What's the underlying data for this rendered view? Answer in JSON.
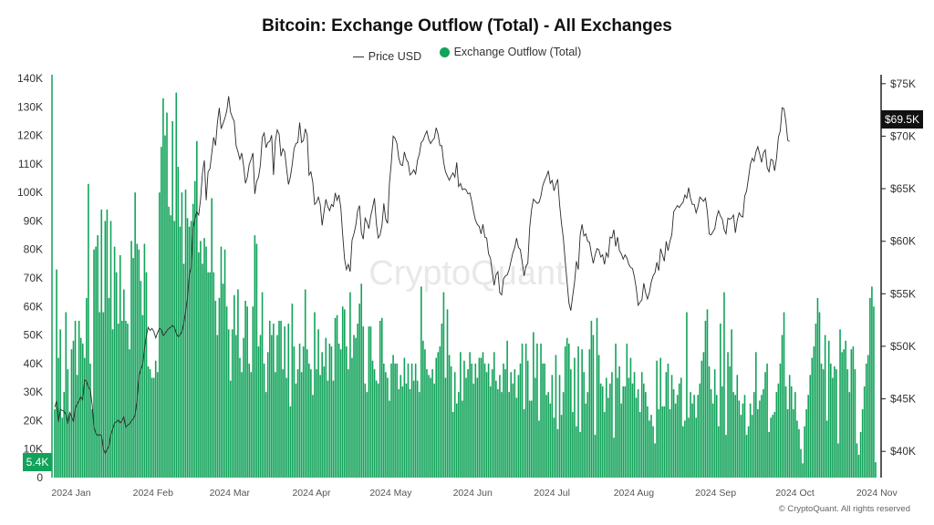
{
  "chart_data": {
    "type": "bar",
    "title": "Bitcoin: Exchange Outflow (Total) - All Exchanges",
    "legend": [
      {
        "label": "Price USD",
        "kind": "line",
        "color": "#333333"
      },
      {
        "label": "Exchange Outflow (Total)",
        "kind": "dot",
        "color": "#12a35a"
      }
    ],
    "legend_position": "top-center",
    "left_axis": {
      "ticks": [
        "0",
        "10K",
        "20K",
        "30K",
        "40K",
        "50K",
        "60K",
        "70K",
        "80K",
        "90K",
        "100K",
        "110K",
        "120K",
        "130K",
        "140K"
      ],
      "range": [
        0,
        140000
      ]
    },
    "right_axis": {
      "ticks": [
        "$40K",
        "$45K",
        "$50K",
        "$55K",
        "$60K",
        "$65K",
        "$70K",
        "$75K"
      ],
      "range": [
        37500,
        75500
      ]
    },
    "x_axis": {
      "ticks": [
        "2024 Jan",
        "2024 Feb",
        "2024 Mar",
        "2024 Apr",
        "2024 May",
        "2024 Jun",
        "2024 Jul",
        "2024 Aug",
        "2024 Sep",
        "2024 Oct",
        "2024 Nov"
      ]
    },
    "grid": false,
    "last_outflow_label": "5.4K",
    "last_price_label": "$69.5K",
    "outflow_series": {
      "name": "Exchange Outflow (Total)",
      "values": [
        24000,
        73000,
        42000,
        52000,
        21000,
        30000,
        58000,
        38000,
        22000,
        45000,
        48000,
        55000,
        36000,
        55000,
        49000,
        47000,
        42000,
        63000,
        103000,
        40000,
        24000,
        80000,
        81000,
        85000,
        58000,
        94000,
        58000,
        90000,
        94000,
        63000,
        90000,
        52000,
        81000,
        72000,
        54000,
        78000,
        55000,
        66000,
        55000,
        54000,
        45000,
        83000,
        77000,
        100000,
        82000,
        80000,
        69000,
        57000,
        82000,
        72000,
        39000,
        38000,
        35000,
        35000,
        41000,
        37000,
        100000,
        116000,
        133000,
        120000,
        128000,
        95000,
        92000,
        125000,
        90000,
        135000,
        109000,
        88000,
        100000,
        75000,
        101000,
        91000,
        88000,
        90000,
        96000,
        104000,
        118000,
        79000,
        83000,
        75000,
        84000,
        81000,
        72000,
        72000,
        98000,
        72000,
        62000,
        50000,
        63000,
        81000,
        68000,
        80000,
        60000,
        52000,
        34000,
        52000,
        64000,
        50000,
        66000,
        42000,
        37000,
        49000,
        62000,
        60000,
        40000,
        37000,
        60000,
        85000,
        82000,
        46000,
        50000,
        65000,
        40000,
        30000,
        44000,
        55000,
        50000,
        54000,
        37000,
        50000,
        55000,
        55000,
        38000,
        53000,
        35000,
        54000,
        25000,
        61000,
        46000,
        33000,
        38000,
        47000,
        37000,
        46000,
        66000,
        45000,
        40000,
        38000,
        29000,
        58000,
        38000,
        52000,
        36000,
        44000,
        39000,
        49000,
        34000,
        47000,
        46000,
        34000,
        56000,
        57000,
        47000,
        45000,
        60000,
        59000,
        46000,
        38000,
        65000,
        42000,
        50000,
        49000,
        54000,
        61000,
        68000,
        53000,
        33000,
        30000,
        53000,
        53000,
        41000,
        38000,
        34000,
        33000,
        55000,
        56000,
        40000,
        37000,
        35000,
        27000,
        40000,
        43000,
        40000,
        40000,
        31000,
        36000,
        32000,
        42000,
        33000,
        40000,
        31000,
        40000,
        34000,
        40000,
        34000,
        30000,
        67000,
        48000,
        45000,
        38000,
        36000,
        35000,
        38000,
        33000,
        42000,
        44000,
        46000,
        54000,
        65000,
        35000,
        59000,
        43000,
        39000,
        23000,
        37000,
        26000,
        30000,
        44000,
        27000,
        41000,
        35000,
        38000,
        44000,
        40000,
        33000,
        40000,
        35000,
        42000,
        42000,
        44000,
        40000,
        37000,
        40000,
        32000,
        38000,
        44000,
        34000,
        31000,
        36000,
        30000,
        40000,
        38000,
        48000,
        30000,
        37000,
        33000,
        38000,
        28000,
        36000,
        40000,
        47000,
        24000,
        47000,
        41000,
        27000,
        27000,
        51000,
        35000,
        47000,
        20000,
        47000,
        40000,
        40000,
        29000,
        30000,
        26000,
        36000,
        21000,
        43000,
        17000,
        36000,
        22000,
        30000,
        46000,
        49000,
        47000,
        38000,
        23000,
        42000,
        18000,
        46000,
        16000,
        45000,
        37000,
        26000,
        30000,
        45000,
        55000,
        50000,
        15000,
        56000,
        43000,
        33000,
        32000,
        23000,
        35000,
        28000,
        33000,
        37000,
        14000,
        47000,
        35000,
        39000,
        26000,
        32000,
        32000,
        47000,
        35000,
        42000,
        33000,
        37000,
        28000,
        31000,
        23000,
        37000,
        33000,
        30000,
        25000,
        20000,
        22000,
        18000,
        12000,
        41000,
        24000,
        42000,
        25000,
        25000,
        37000,
        40000,
        24000,
        36000,
        31000,
        26000,
        29000,
        33000,
        35000,
        18000,
        20000,
        58000,
        21000,
        30000,
        26000,
        29000,
        21000,
        29000,
        33000,
        41000,
        44000,
        55000,
        59000,
        39000,
        31000,
        26000,
        38000,
        29000,
        18000,
        54000,
        32000,
        65000,
        15000,
        44000,
        39000,
        52000,
        30000,
        29000,
        36000,
        27000,
        22000,
        26000,
        29000,
        15000,
        18000,
        26000,
        22000,
        30000,
        44000,
        24000,
        27000,
        29000,
        31000,
        37000,
        40000,
        16000,
        21000,
        22000,
        23000,
        30000,
        33000,
        40000,
        50000,
        58000,
        32000,
        24000,
        36000,
        32000,
        24000,
        30000,
        20000,
        17000,
        10000,
        5000,
        18000,
        24000,
        29000,
        36000,
        42000,
        46000,
        54000,
        63000,
        58000,
        40000,
        38000,
        50000,
        20000,
        48000,
        40000,
        35000,
        39000,
        38000,
        12000,
        52000,
        44000,
        45000,
        48000,
        38000,
        30000,
        45000,
        46000,
        38000,
        12000,
        8000,
        16000,
        24000,
        32000,
        40000,
        43000,
        63000,
        67000,
        60000,
        5400
      ]
    },
    "price_series": {
      "name": "Price USD",
      "values": [
        44200,
        44800,
        42800,
        44000,
        43900,
        43800,
        43500,
        42600,
        43700,
        43300,
        42800,
        44100,
        44500,
        44800,
        45200,
        44900,
        46800,
        46700,
        46100,
        45900,
        44500,
        42300,
        41700,
        41500,
        41600,
        41500,
        40200,
        39800,
        40200,
        40500,
        41600,
        42100,
        42700,
        42800,
        43000,
        42700,
        42900,
        43300,
        42300,
        42500,
        42600,
        42900,
        43100,
        43500,
        44900,
        47200,
        47800,
        48300,
        49800,
        51000,
        51800,
        51500,
        51700,
        51400,
        50800,
        51300,
        51700,
        51600,
        51000,
        51200,
        51500,
        51700,
        51800,
        52000,
        51800,
        51200,
        50900,
        51100,
        51400,
        52200,
        53300,
        54600,
        56800,
        57500,
        61200,
        62100,
        62800,
        62500,
        64000,
        66500,
        67700,
        63900,
        66600,
        66900,
        68400,
        69900,
        69100,
        71300,
        72700,
        70700,
        71200,
        71700,
        72400,
        73800,
        72300,
        71800,
        71400,
        69100,
        68500,
        67800,
        68400,
        67200,
        65500,
        66100,
        67300,
        67800,
        68400,
        64500,
        65700,
        66100,
        67300,
        69900,
        70300,
        68900,
        69400,
        69500,
        70100,
        66300,
        69600,
        70600,
        70200,
        68100,
        68800,
        68500,
        66900,
        65400,
        66100,
        67300,
        68800,
        69300,
        69400,
        71300,
        69400,
        69600,
        70700,
        70100,
        66300,
        66600,
        65600,
        63500,
        63700,
        64200,
        63500,
        61500,
        62800,
        64000,
        63300,
        62900,
        63500,
        63300,
        64600,
        63900,
        64400,
        63200,
        60600,
        58300,
        57300,
        57800,
        57100,
        60100,
        60700,
        61500,
        62900,
        63400,
        60800,
        60200,
        62200,
        61800,
        61200,
        62400,
        63200,
        64100,
        61700,
        60300,
        60600,
        61500,
        63600,
        62100,
        61700,
        65500,
        67500,
        70000,
        69800,
        69300,
        67900,
        67300,
        67200,
        68500,
        67800,
        67500,
        66300,
        66500,
        66800,
        66400,
        67700,
        68300,
        69400,
        69600,
        70100,
        70500,
        69700,
        69300,
        69600,
        69800,
        70800,
        70200,
        69100,
        69100,
        67500,
        66600,
        66200,
        65800,
        66200,
        66500,
        66100,
        67500,
        65200,
        65500,
        64900,
        65000,
        64900,
        64500,
        64600,
        63800,
        62800,
        62000,
        61600,
        61400,
        60700,
        61600,
        60400,
        60300,
        58800,
        58400,
        57000,
        55800,
        56800,
        57100,
        55100,
        54900,
        56400,
        56700,
        56800,
        57300,
        58100,
        58900,
        59400,
        60300,
        59400,
        59200,
        58000,
        56700,
        57600,
        57900,
        61300,
        63000,
        64000,
        63800,
        63600,
        63700,
        64300,
        65300,
        65800,
        66200,
        66700,
        65500,
        65800,
        64800,
        65400,
        65900,
        63500,
        61700,
        60300,
        58100,
        56100,
        54100,
        53400,
        54800,
        56100,
        58100,
        57300,
        60600,
        61600,
        60500,
        60700,
        60000,
        59900,
        58800,
        57900,
        58700,
        59300,
        59200,
        58500,
        58700,
        57800,
        58900,
        58500,
        60400,
        60300,
        61100,
        59500,
        60400,
        59100,
        58800,
        58300,
        58700,
        58400,
        57800,
        57500,
        57400,
        56600,
        55500,
        53900,
        54200,
        54400,
        56000,
        55100,
        54500,
        55100,
        56100,
        56700,
        57000,
        58000,
        57200,
        59300,
        58700,
        58100,
        60000,
        59100,
        60000,
        60600,
        62800,
        63100,
        63400,
        63200,
        63500,
        63700,
        64400,
        64100,
        65100,
        64100,
        63500,
        63500,
        62700,
        63300,
        64200,
        64000,
        63800,
        64100,
        62800,
        60700,
        60600,
        60900,
        61200,
        62300,
        62900,
        62400,
        62100,
        61100,
        60700,
        62200,
        62100,
        62200,
        62500,
        60800,
        62000,
        62700,
        62400,
        62300,
        64300,
        64800,
        66000,
        67300,
        67900,
        67600,
        68500,
        69000,
        68300,
        67500,
        68400,
        68700,
        67000,
        66600,
        67800,
        67700,
        66700,
        67900,
        69900,
        70500,
        72700,
        72600,
        71400,
        69600,
        69500
      ]
    }
  }
}
